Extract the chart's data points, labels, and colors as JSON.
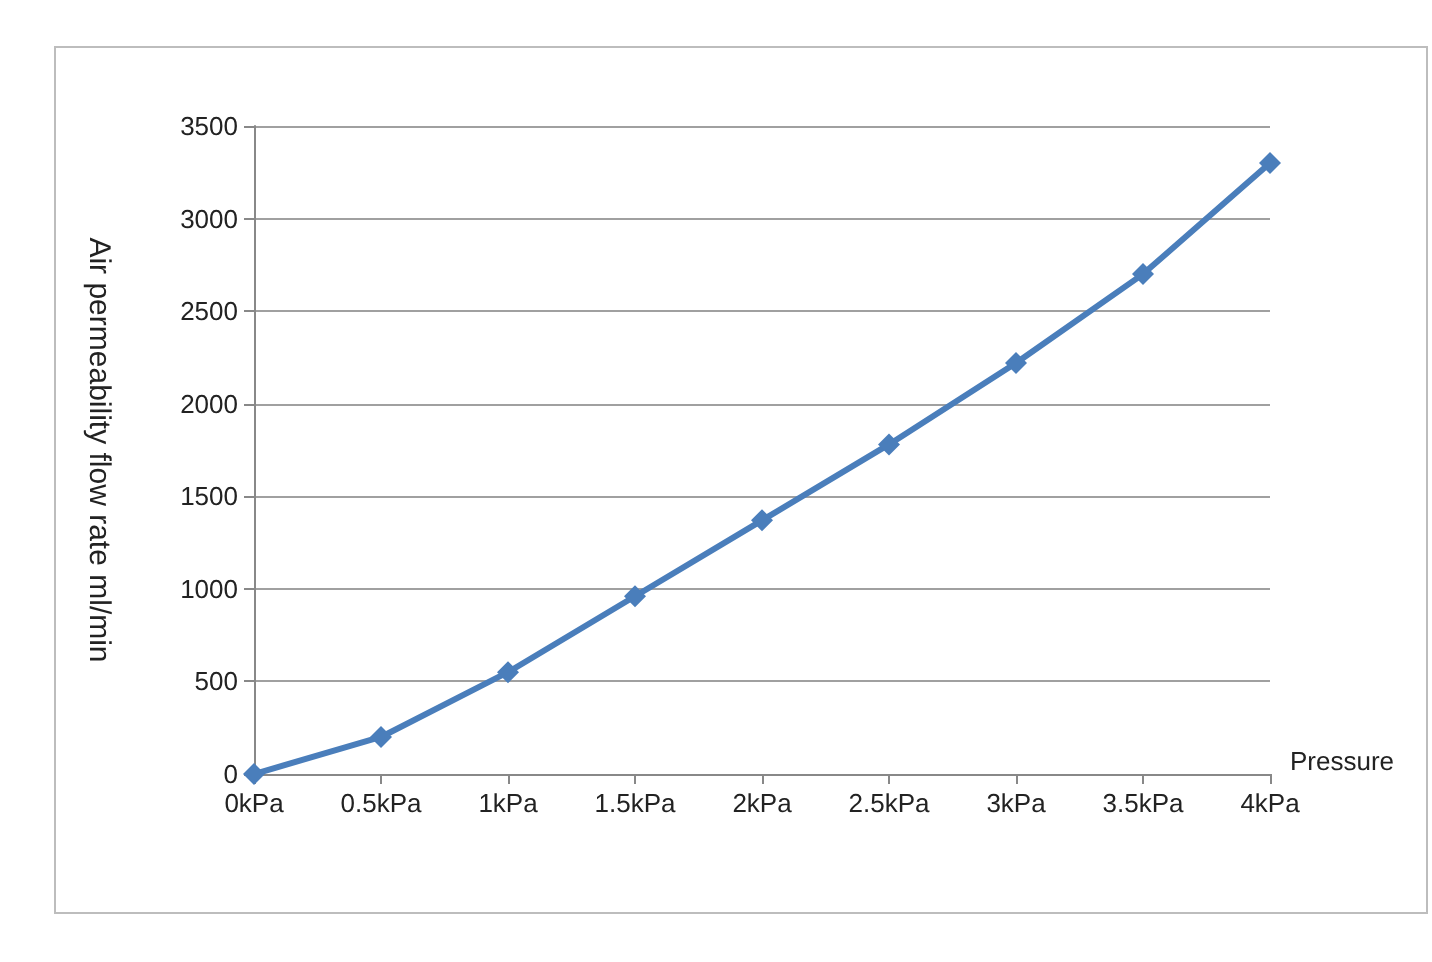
{
  "chart_data": {
    "type": "line",
    "xlabel": "Pressure",
    "ylabel": "Air permeability flow rate ml/min",
    "categories": [
      "0kPa",
      "0.5kPa",
      "1kPa",
      "1.5kPa",
      "2kPa",
      "2.5kPa",
      "3kPa",
      "3.5kPa",
      "4kPa"
    ],
    "series": [
      {
        "color": "#4a7ebb",
        "values": [
          0,
          200,
          550,
          960,
          1370,
          1780,
          2220,
          2700,
          3300
        ]
      }
    ],
    "ylim": [
      0,
      3500
    ],
    "yticks": [
      0,
      500,
      1000,
      1500,
      2000,
      2500,
      3000,
      3500
    ],
    "grid": "y",
    "marker": "diamond",
    "line_style": "solid"
  }
}
